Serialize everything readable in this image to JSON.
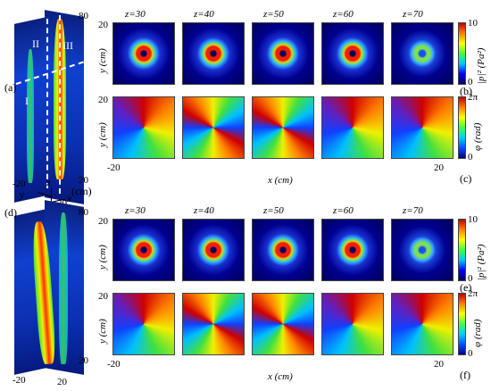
{
  "figure": {
    "panels": {
      "a": "(a)",
      "b": "(b)",
      "c": "(c)",
      "d": "(d)",
      "e": "(e)",
      "f": "(f)"
    },
    "z_labels": [
      "z=30",
      "z=40",
      "z=50",
      "z=60",
      "z=70"
    ],
    "regions": {
      "I": "I",
      "II": "II",
      "III": "III"
    },
    "axis_y_label": "y (cm)",
    "axis_x_label": "x (cm)",
    "axis_cm": "(cm)",
    "axis_letters": {
      "z": "z",
      "y": "y",
      "x": "x"
    },
    "tick_20": "20",
    "tick_neg20": "-20",
    "tick_80": "80",
    "tick_0": "0",
    "tick_10": "10",
    "tick_2pi": "2π",
    "colorbar_amp_label": "|p|² (Pa²)",
    "colorbar_phase_label": "φ (rad)",
    "colors": {
      "amp_high": "#c00000",
      "amp_low": "#00005a",
      "phase_ring": "#40e040"
    }
  }
}
